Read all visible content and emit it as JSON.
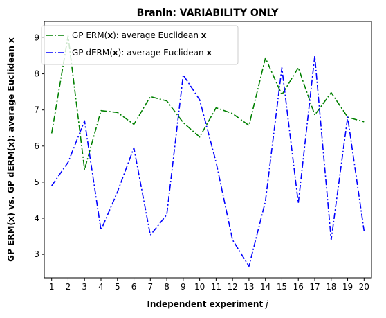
{
  "chart_data": {
    "type": "line",
    "title": "Branin: VARIABILITY ONLY",
    "xlabel": "Independent experiment",
    "xlabel_var": "j",
    "ylabel": "GP ERM(x) vs. GP dERM(x): average Euclidean x",
    "xlim": [
      0.55,
      20.45
    ],
    "ylim": [
      2.35,
      9.45
    ],
    "grid": false,
    "legend_position": "top-left",
    "x": [
      1,
      2,
      3,
      4,
      5,
      6,
      7,
      8,
      9,
      10,
      11,
      12,
      13,
      14,
      15,
      16,
      17,
      18,
      19,
      20
    ],
    "x_ticks": [
      1,
      2,
      3,
      4,
      5,
      6,
      7,
      8,
      9,
      10,
      11,
      12,
      13,
      14,
      15,
      16,
      17,
      18,
      19,
      20
    ],
    "y_ticks": [
      3,
      4,
      5,
      6,
      7,
      8,
      9
    ],
    "series": [
      {
        "name": "GP ERM(x): average Euclidean x",
        "legend_prefix": "GP ERM(",
        "legend_bold": "x",
        "legend_mid": "): average Euclidean ",
        "legend_bold2": "x",
        "color": "#008000",
        "dash": "dashdot",
        "values": [
          6.35,
          9.05,
          5.35,
          6.98,
          6.93,
          6.6,
          7.37,
          7.25,
          6.65,
          6.25,
          7.06,
          6.9,
          6.57,
          8.44,
          7.42,
          8.17,
          6.86,
          7.48,
          6.8,
          6.67
        ]
      },
      {
        "name": "GP dERM(x): average Euclidean x",
        "legend_prefix": "GP dERM(",
        "legend_bold": "x",
        "legend_mid": "): average Euclidean ",
        "legend_bold2": "x",
        "color": "#0000ff",
        "dash": "dashdot",
        "values": [
          4.9,
          5.55,
          6.7,
          3.67,
          4.73,
          5.95,
          3.53,
          4.1,
          7.97,
          7.28,
          5.55,
          3.4,
          2.67,
          4.47,
          8.17,
          4.42,
          8.49,
          3.4,
          6.8,
          3.65
        ]
      }
    ]
  }
}
